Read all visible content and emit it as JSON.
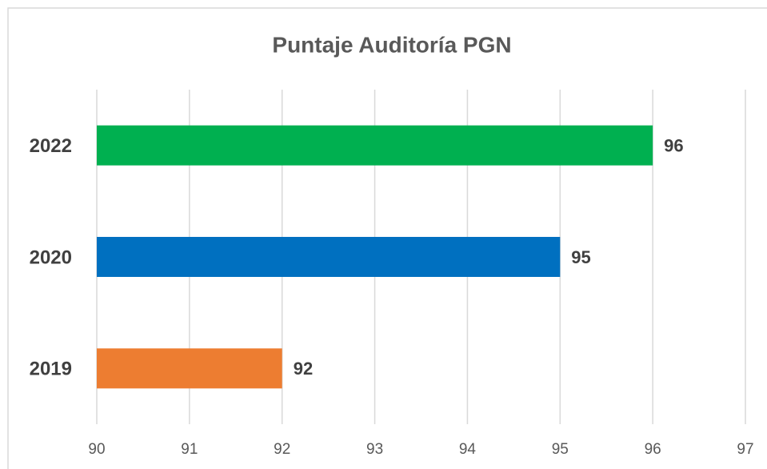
{
  "chart_data": {
    "type": "bar",
    "orientation": "horizontal",
    "title": "Puntaje Auditoría PGN",
    "categories": [
      "2022",
      "2020",
      "2019"
    ],
    "values": [
      96,
      95,
      92
    ],
    "colors": [
      "#00b050",
      "#0070c0",
      "#ed7d31"
    ],
    "xlim": [
      90,
      97
    ],
    "xticks": [
      90,
      91,
      92,
      93,
      94,
      95,
      96,
      97
    ],
    "grid": true
  }
}
